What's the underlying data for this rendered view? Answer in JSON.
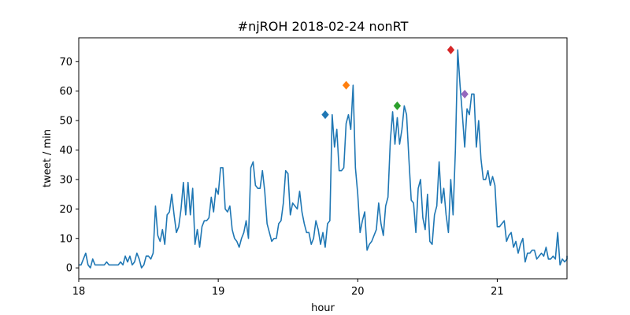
{
  "chart_data": {
    "type": "line",
    "title": "#njROH 2018-02-24 nonRT",
    "xlabel": "hour",
    "ylabel": "tweet / min",
    "xlim": [
      18,
      21.5
    ],
    "ylim": [
      -3.7,
      78.1
    ],
    "x_ticks": [
      {
        "value": 18,
        "label": "18"
      },
      {
        "value": 19,
        "label": "19"
      },
      {
        "value": 20,
        "label": "20"
      },
      {
        "value": 21,
        "label": "21"
      }
    ],
    "y_ticks": [
      {
        "value": 0,
        "label": "0"
      },
      {
        "value": 10,
        "label": "10"
      },
      {
        "value": 20,
        "label": "20"
      },
      {
        "value": 30,
        "label": "30"
      },
      {
        "value": 40,
        "label": "40"
      },
      {
        "value": 50,
        "label": "50"
      },
      {
        "value": 60,
        "label": "60"
      },
      {
        "value": 70,
        "label": "70"
      }
    ],
    "grid": false,
    "series": [
      {
        "color": "#1f77b4",
        "x_start": 18.0,
        "x_step_minutes": 1,
        "values": [
          1,
          1,
          3,
          5,
          1,
          0,
          3,
          1,
          1,
          1,
          1,
          1,
          2,
          1,
          1,
          1,
          1,
          1,
          2,
          1,
          4,
          2,
          4,
          1,
          2,
          5,
          3,
          0,
          1,
          4,
          4,
          3,
          5,
          21,
          11,
          9,
          13,
          8,
          18,
          19,
          25,
          18,
          12,
          14,
          20,
          29,
          18,
          29,
          18,
          27,
          8,
          13,
          7,
          14,
          16,
          16,
          17,
          24,
          19,
          27,
          25,
          34,
          34,
          20,
          19,
          21,
          13,
          10,
          9,
          7,
          10,
          12,
          16,
          10,
          34,
          36,
          28,
          27,
          27,
          33,
          26,
          15,
          12,
          9,
          10,
          10,
          15,
          16,
          22,
          33,
          32,
          18,
          22,
          21,
          20,
          26,
          19,
          15,
          12,
          12,
          8,
          10,
          16,
          13,
          8,
          12,
          7,
          15,
          16,
          52,
          41,
          47,
          33,
          33,
          34,
          49,
          52,
          47,
          62,
          34,
          25,
          12,
          16,
          19,
          6,
          8,
          9,
          11,
          13,
          22,
          15,
          11,
          21,
          24,
          43,
          53,
          42,
          51,
          42,
          47,
          55,
          52,
          37,
          23,
          22,
          12,
          27,
          30,
          17,
          13,
          25,
          9,
          8,
          18,
          21,
          36,
          22,
          27,
          18,
          12,
          30,
          18,
          40,
          74,
          62,
          52,
          41,
          54,
          52,
          59,
          59,
          41,
          50,
          37,
          30,
          30,
          33,
          28,
          31,
          28,
          14,
          14,
          15,
          16,
          9,
          11,
          12,
          7,
          9,
          5,
          8,
          10,
          2,
          5,
          5,
          6,
          6,
          3,
          4,
          5,
          4,
          7,
          3,
          3,
          4,
          3,
          12,
          1,
          3,
          2,
          3,
          3,
          4,
          3
        ]
      }
    ],
    "peaks": [
      {
        "x": 19.767,
        "y": 52,
        "color": "#1f77b4"
      },
      {
        "x": 19.917,
        "y": 62,
        "color": "#ff7f0e"
      },
      {
        "x": 20.283,
        "y": 55,
        "color": "#2ca02c"
      },
      {
        "x": 20.667,
        "y": 74,
        "color": "#d62728"
      },
      {
        "x": 20.767,
        "y": 59,
        "color": "#9467bd"
      }
    ]
  }
}
